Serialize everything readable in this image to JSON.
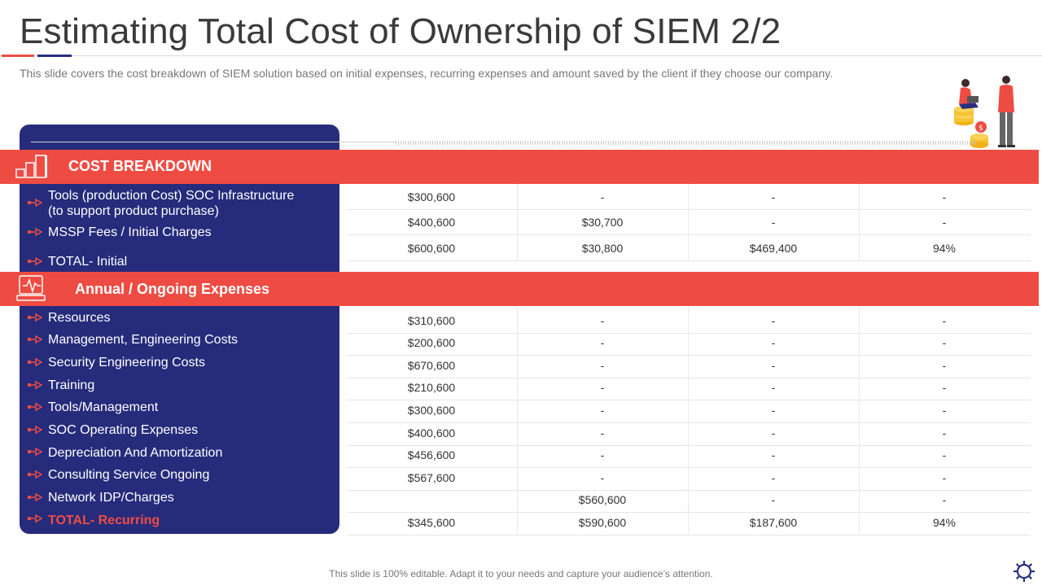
{
  "header": {
    "title": "Estimating Total Cost of Ownership of SIEM 2/2",
    "subtitle": "This slide covers the cost breakdown of SIEM solution based on initial expenses, recurring expenses and amount saved by the client if they choose our company."
  },
  "sections": {
    "initial": {
      "label": "COST BREAKDOWN",
      "icon": "bar-steps-icon",
      "rows": [
        {
          "label_lines": [
            "Tools (production Cost) SOC Infrastructure",
            "(to support product purchase)"
          ]
        },
        {
          "label_lines": [
            "MSSP Fees / Initial Charges"
          ]
        },
        {
          "label_lines": [
            "TOTAL- Initial"
          ]
        }
      ],
      "values": [
        [
          "$300,600",
          "-",
          "-",
          "-"
        ],
        [
          "$400,600",
          "$30,700",
          "-",
          "-"
        ],
        [
          "$600,600",
          "$30,800",
          "$469,400",
          "94%"
        ]
      ]
    },
    "recurring": {
      "label": "Annual / Ongoing Expenses",
      "icon": "monitor-pulse-icon",
      "rows": [
        {
          "label": "Resources"
        },
        {
          "label": "Management, Engineering Costs"
        },
        {
          "label": "Security Engineering Costs"
        },
        {
          "label": "Training"
        },
        {
          "label": "Tools/Management"
        },
        {
          "label": "SOC Operating Expenses"
        },
        {
          "label": "Depreciation And Amortization"
        },
        {
          "label": "Consulting Service Ongoing"
        },
        {
          "label": "Network IDP/Charges"
        },
        {
          "label": "TOTAL- Recurring"
        }
      ],
      "values": [
        [
          "$310,600",
          "-",
          "-",
          "-"
        ],
        [
          "$200,600",
          "-",
          "-",
          "-"
        ],
        [
          "$670,600",
          "-",
          "-",
          "-"
        ],
        [
          "$210,600",
          "-",
          "-",
          "-"
        ],
        [
          "$300,600",
          "-",
          "-",
          "-"
        ],
        [
          "$400,600",
          "-",
          "-",
          "-"
        ],
        [
          "$456,600",
          "-",
          "-",
          "-"
        ],
        [
          "$567,600",
          "-",
          "-",
          "-"
        ],
        [
          "",
          "$560,600",
          "-",
          "-"
        ],
        [
          "$345,600",
          "$590,600",
          "$187,600",
          "94%"
        ]
      ]
    }
  },
  "footer": "This slide is 100% editable. Adapt it to your needs and capture your audience’s attention.",
  "colors": {
    "accent_red": "#ee4c43",
    "navy": "#262c7b"
  },
  "icons": {
    "illustration": "people-with-coins-icon",
    "corner": "gear-icon"
  }
}
